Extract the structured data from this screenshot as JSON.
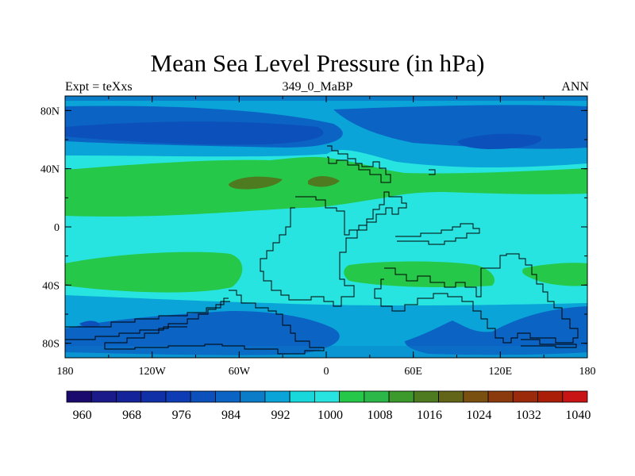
{
  "chart_data": {
    "type": "heatmap",
    "title": "Mean Sea Level Pressure (in hPa)",
    "left_label": "Expt = teXxs",
    "center_label": "349_0_MaBP",
    "right_label": "ANN",
    "x_ticks": [
      "180",
      "120W",
      "60W",
      "0",
      "60E",
      "120E",
      "180"
    ],
    "y_ticks": [
      "80N",
      "40N",
      "0",
      "40S",
      "80S"
    ],
    "xlim": [
      -180,
      180
    ],
    "ylim": [
      -90,
      90
    ],
    "colorbar_levels": [
      960,
      964,
      968,
      972,
      976,
      980,
      984,
      988,
      992,
      996,
      1000,
      1004,
      1008,
      1012,
      1016,
      1020,
      1024,
      1028,
      1032,
      1036,
      1040
    ],
    "colorbar_labels": [
      "960",
      "968",
      "976",
      "984",
      "992",
      "1000",
      "1008",
      "1016",
      "1024",
      "1032",
      "1040"
    ],
    "colorbar_colors": [
      "#1a0a6e",
      "#1a1a8a",
      "#15239a",
      "#1030a8",
      "#0d3cb4",
      "#0c50bc",
      "#0b64c4",
      "#0a7cc8",
      "#0aa4d8",
      "#18d8dc",
      "#28e4e0",
      "#26c84a",
      "#2cb848",
      "#3c9a2c",
      "#4e7a20",
      "#626418",
      "#7a5010",
      "#8a3a0c",
      "#9a2a0a",
      "#aa1e08",
      "#c81414"
    ],
    "field_levels": [
      "988",
      "992",
      "996",
      "1000",
      "1004",
      "1008",
      "1012"
    ]
  }
}
